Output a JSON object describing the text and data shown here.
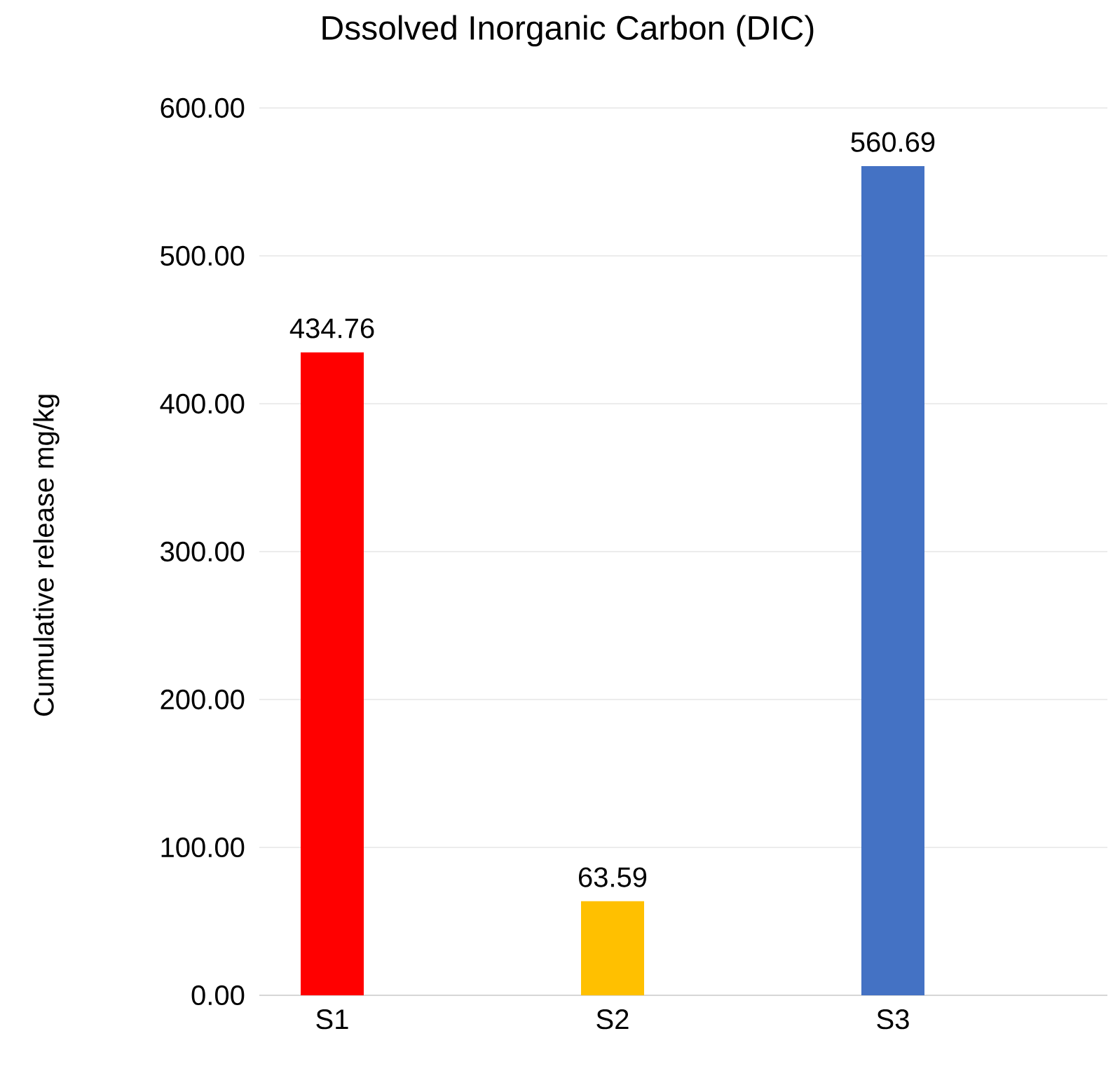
{
  "chart_data": {
    "type": "bar",
    "title": "Dssolved Inorganic Carbon (DIC)",
    "ylabel": "Cumulative release mg/kg",
    "categories": [
      "S1",
      "S2",
      "S3"
    ],
    "values": [
      434.76,
      63.59,
      560.69
    ],
    "colors": [
      "#ff0000",
      "#ffc000",
      "#4472c4"
    ],
    "ylim": [
      0,
      600
    ],
    "yticks": [
      {
        "value": 0,
        "label": "0.00"
      },
      {
        "value": 100,
        "label": "100.00"
      },
      {
        "value": 200,
        "label": "200.00"
      },
      {
        "value": 300,
        "label": "300.00"
      },
      {
        "value": 400,
        "label": "400.00"
      },
      {
        "value": 500,
        "label": "500.00"
      },
      {
        "value": 600,
        "label": "600.00"
      }
    ],
    "grid": "y",
    "data_labels": true
  }
}
